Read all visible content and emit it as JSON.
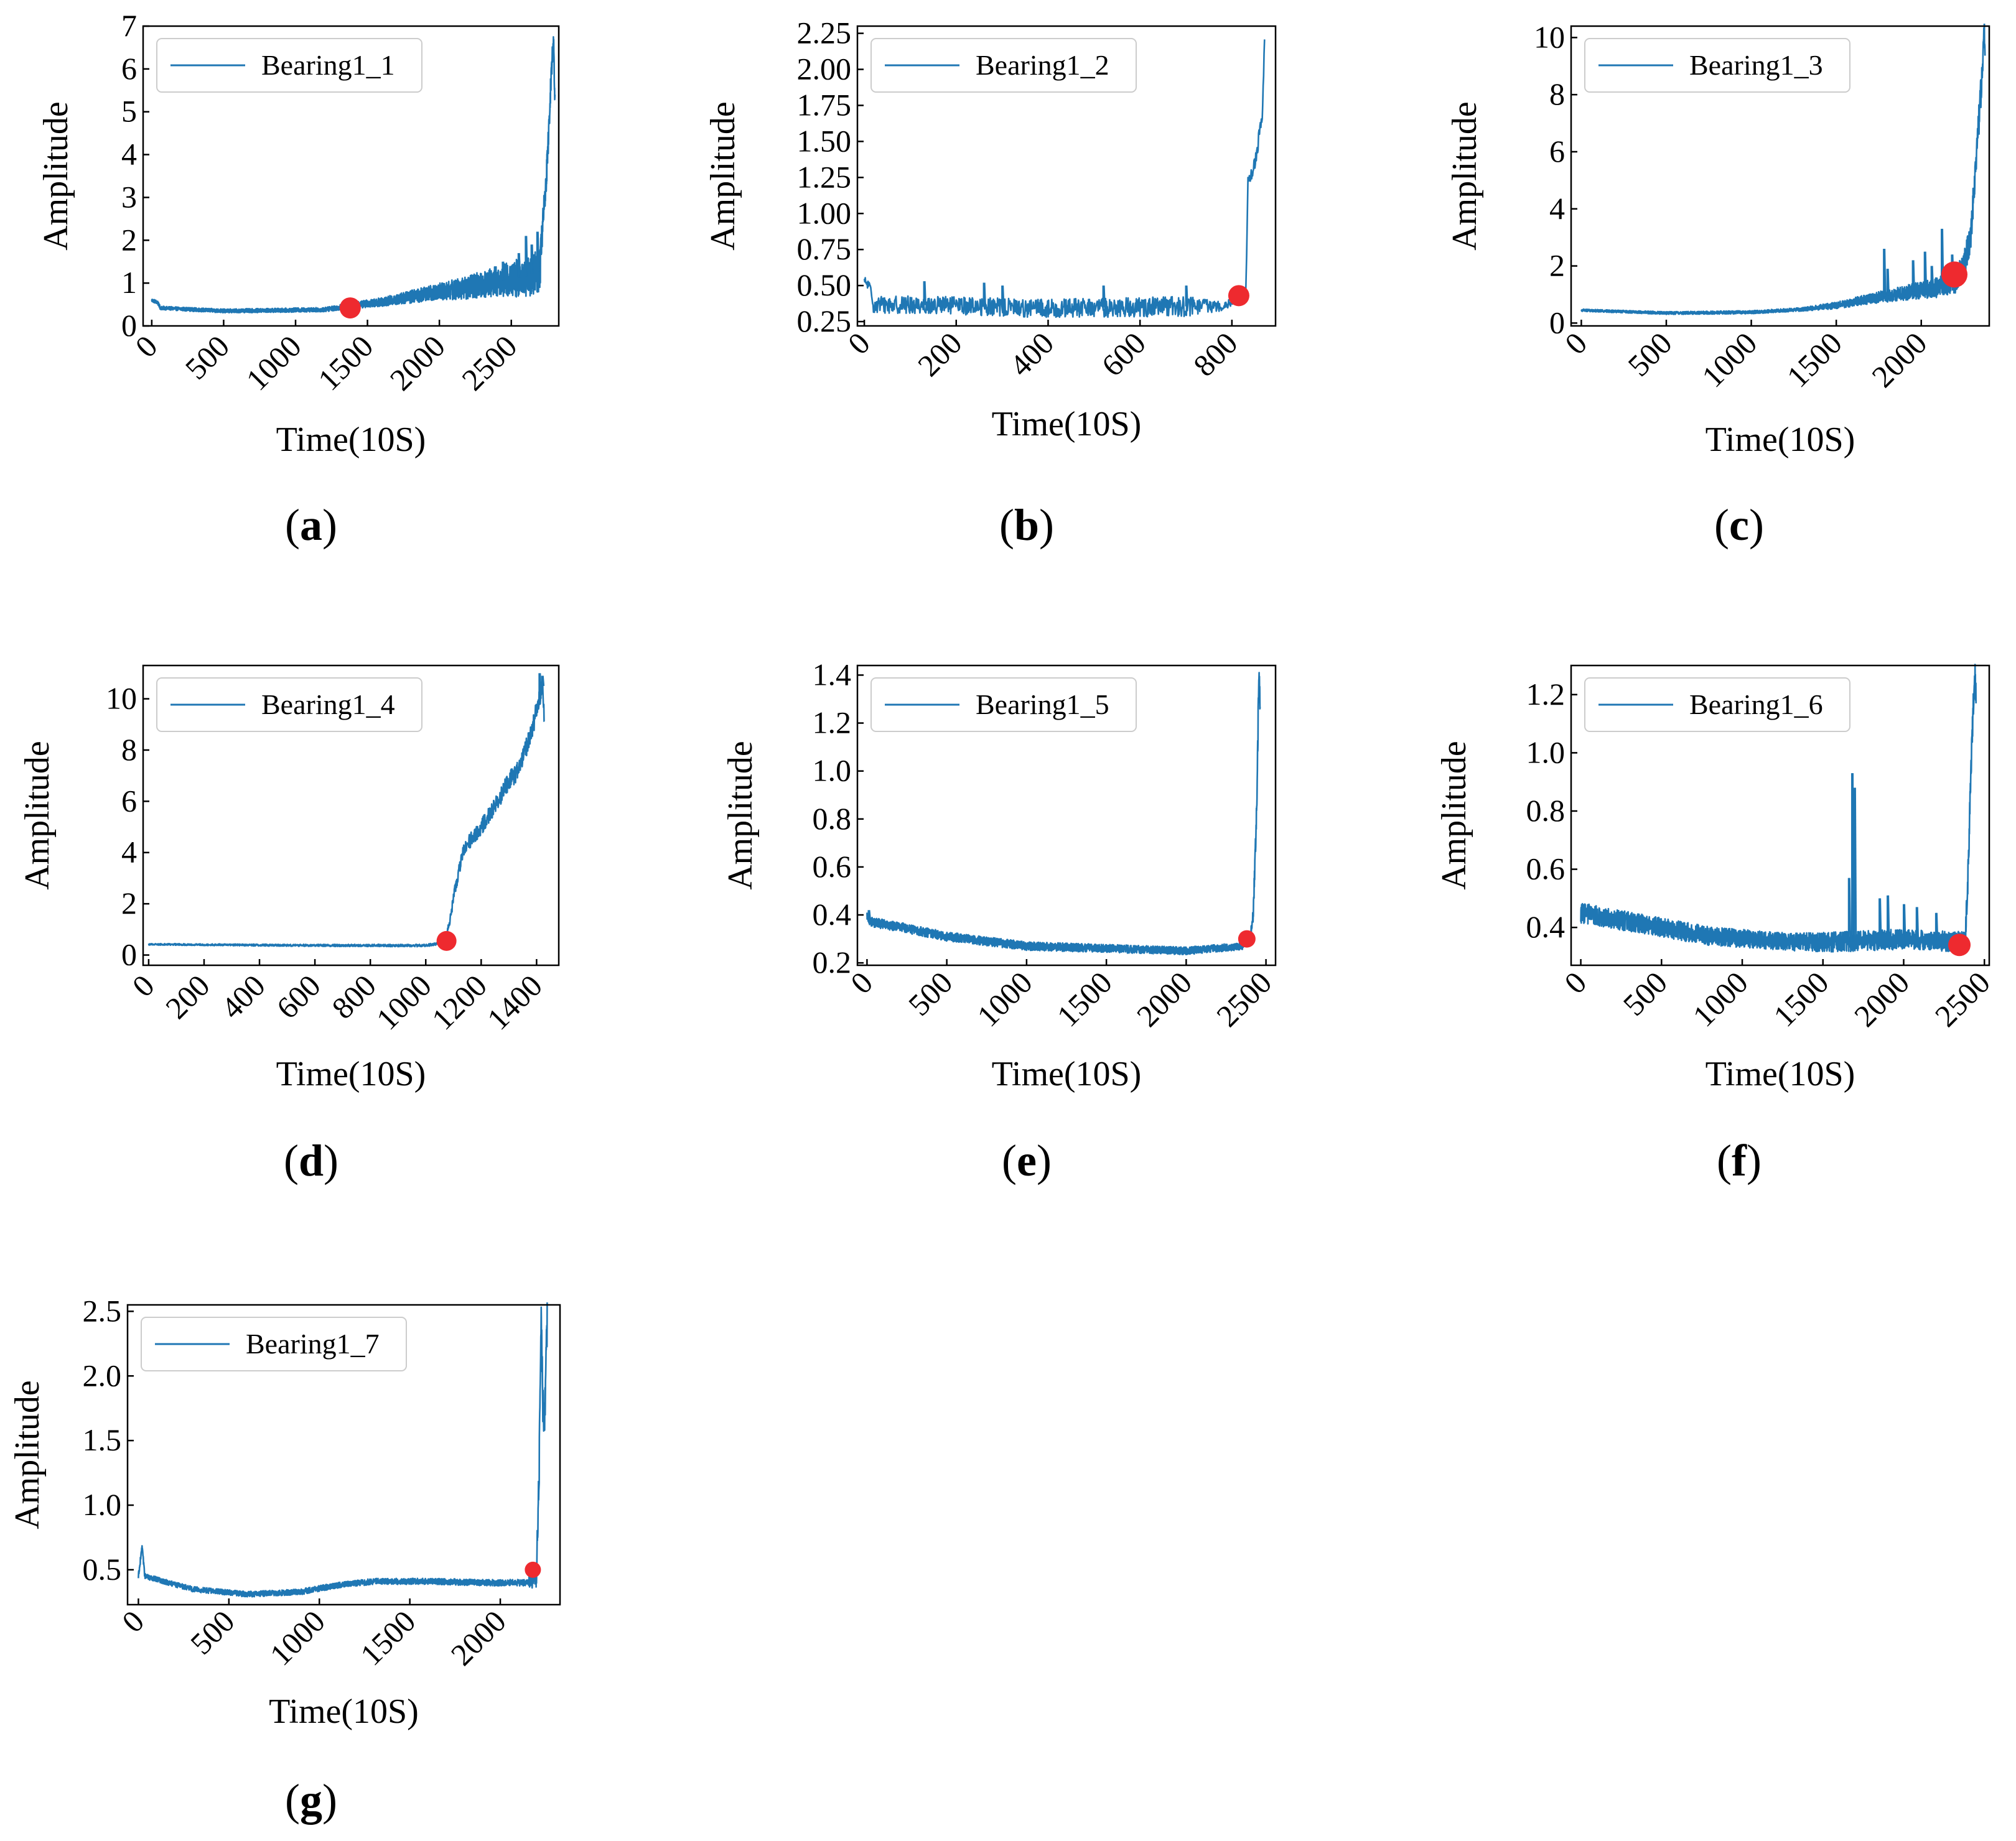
{
  "figure": {
    "line_color": "#1f77b4",
    "marker_color": "#ee2a2f"
  },
  "chart_data": [
    {
      "id": "a",
      "panel_label": "a",
      "type": "line",
      "legend": "Bearing1_1",
      "xlabel": "Time(10S)",
      "ylabel": "Amplitude",
      "xlim": [
        -60,
        2830
      ],
      "ylim": [
        0,
        7
      ],
      "xticks": [
        0,
        500,
        1000,
        1500,
        2000,
        2500
      ],
      "yticks": [
        0,
        1,
        2,
        3,
        4,
        5,
        6,
        7
      ],
      "ytick_labels": [
        "0",
        "1",
        "2",
        "3",
        "4",
        "5",
        "6",
        "7"
      ],
      "n_points": 2803,
      "shape": [
        [
          0,
          0.6
        ],
        [
          40,
          0.55
        ],
        [
          60,
          0.42
        ],
        [
          300,
          0.38
        ],
        [
          500,
          0.35
        ],
        [
          800,
          0.36
        ],
        [
          1000,
          0.37
        ],
        [
          1200,
          0.38
        ],
        [
          1400,
          0.48
        ],
        [
          1600,
          0.56
        ],
        [
          1800,
          0.68
        ],
        [
          2000,
          0.8
        ],
        [
          2200,
          0.9
        ],
        [
          2400,
          1.05
        ],
        [
          2600,
          1.15
        ],
        [
          2700,
          1.3
        ],
        [
          2720,
          2.5
        ],
        [
          2740,
          3.2
        ],
        [
          2760,
          4.5
        ],
        [
          2780,
          6.0
        ],
        [
          2795,
          6.7
        ],
        [
          2803,
          5.2
        ]
      ],
      "noise": [
        [
          0,
          0.04
        ],
        [
          1200,
          0.05
        ],
        [
          1600,
          0.1
        ],
        [
          2000,
          0.2
        ],
        [
          2400,
          0.35
        ],
        [
          2700,
          0.55
        ],
        [
          2720,
          0.3
        ]
      ],
      "spikes": [
        [
          2440,
          1.5
        ],
        [
          2550,
          1.7
        ],
        [
          2600,
          2.1
        ],
        [
          2640,
          1.9
        ],
        [
          2680,
          2.2
        ]
      ],
      "fpt": {
        "x": 1380,
        "y": 0.42
      }
    },
    {
      "id": "b",
      "panel_label": "b",
      "type": "line",
      "legend": "Bearing1_2",
      "xlabel": "Time(10S)",
      "ylabel": "Amplitude",
      "xlim": [
        -15,
        895
      ],
      "ylim": [
        0.22,
        2.3
      ],
      "xticks": [
        0,
        200,
        400,
        600,
        800
      ],
      "yticks": [
        0.25,
        0.5,
        0.75,
        1.0,
        1.25,
        1.5,
        1.75,
        2.0,
        2.25
      ],
      "ytick_labels": [
        "0.25",
        "0.50",
        "0.75",
        "1.00",
        "1.25",
        "1.50",
        "1.75",
        "2.00",
        "2.25"
      ],
      "n_points": 871,
      "shape": [
        [
          0,
          0.53
        ],
        [
          10,
          0.5
        ],
        [
          20,
          0.37
        ],
        [
          200,
          0.36
        ],
        [
          400,
          0.34
        ],
        [
          600,
          0.35
        ],
        [
          780,
          0.36
        ],
        [
          820,
          0.42
        ],
        [
          830,
          0.45
        ],
        [
          835,
          1.2
        ],
        [
          840,
          1.23
        ],
        [
          850,
          1.35
        ],
        [
          860,
          1.55
        ],
        [
          866,
          1.65
        ],
        [
          871,
          2.2
        ]
      ],
      "noise": [
        [
          0,
          0.03
        ],
        [
          20,
          0.06
        ],
        [
          700,
          0.07
        ],
        [
          790,
          0.03
        ],
        [
          835,
          0.05
        ]
      ],
      "spikes": [
        [
          130,
          0.53
        ],
        [
          260,
          0.52
        ],
        [
          300,
          0.5
        ],
        [
          520,
          0.5
        ],
        [
          700,
          0.5
        ]
      ],
      "fpt": {
        "x": 815,
        "y": 0.43
      }
    },
    {
      "id": "c",
      "panel_label": "c",
      "type": "line",
      "legend": "Bearing1_3",
      "xlabel": "Time(10S)",
      "ylabel": "Amplitude",
      "xlim": [
        -60,
        2400
      ],
      "ylim": [
        -0.1,
        10.4
      ],
      "xticks": [
        0,
        500,
        1000,
        1500,
        2000
      ],
      "yticks": [
        0,
        2,
        4,
        6,
        8,
        10
      ],
      "ytick_labels": [
        "0",
        "2",
        "4",
        "6",
        "8",
        "10"
      ],
      "n_points": 2375,
      "shape": [
        [
          0,
          0.45
        ],
        [
          500,
          0.35
        ],
        [
          1000,
          0.38
        ],
        [
          1300,
          0.48
        ],
        [
          1500,
          0.62
        ],
        [
          1700,
          0.85
        ],
        [
          1900,
          1.05
        ],
        [
          2100,
          1.25
        ],
        [
          2200,
          1.5
        ],
        [
          2250,
          2.0
        ],
        [
          2290,
          3.0
        ],
        [
          2320,
          5.5
        ],
        [
          2350,
          8.0
        ],
        [
          2370,
          10.3
        ],
        [
          2375,
          9.6
        ]
      ],
      "noise": [
        [
          0,
          0.04
        ],
        [
          1300,
          0.06
        ],
        [
          1700,
          0.18
        ],
        [
          2100,
          0.35
        ],
        [
          2250,
          0.5
        ],
        [
          2375,
          0.6
        ]
      ],
      "spikes": [
        [
          1780,
          2.6
        ],
        [
          1800,
          1.9
        ],
        [
          1950,
          2.2
        ],
        [
          2020,
          2.5
        ],
        [
          2060,
          2.0
        ],
        [
          2120,
          3.3
        ],
        [
          2180,
          2.4
        ]
      ],
      "fpt": {
        "x": 2195,
        "y": 1.7
      }
    },
    {
      "id": "d",
      "panel_label": "d",
      "type": "line",
      "legend": "Bearing1_4",
      "xlabel": "Time(10S)",
      "ylabel": "Amplitude",
      "xlim": [
        -20,
        1480
      ],
      "ylim": [
        -0.4,
        11.3
      ],
      "xticks": [
        0,
        200,
        400,
        600,
        800,
        1000,
        1200,
        1400
      ],
      "yticks": [
        0,
        2,
        4,
        6,
        8,
        10
      ],
      "ytick_labels": [
        "0",
        "2",
        "4",
        "6",
        "8",
        "10"
      ],
      "n_points": 1428,
      "shape": [
        [
          0,
          0.42
        ],
        [
          500,
          0.38
        ],
        [
          1000,
          0.37
        ],
        [
          1070,
          0.5
        ],
        [
          1090,
          1.5
        ],
        [
          1110,
          2.8
        ],
        [
          1140,
          4.2
        ],
        [
          1170,
          4.6
        ],
        [
          1200,
          5.0
        ],
        [
          1230,
          5.5
        ],
        [
          1260,
          6.0
        ],
        [
          1300,
          6.8
        ],
        [
          1340,
          7.3
        ],
        [
          1370,
          8.3
        ],
        [
          1400,
          9.5
        ],
        [
          1420,
          10.5
        ],
        [
          1428,
          9.4
        ]
      ],
      "noise": [
        [
          0,
          0.03
        ],
        [
          1070,
          0.05
        ],
        [
          1100,
          0.25
        ],
        [
          1428,
          0.45
        ]
      ],
      "spikes": [
        [
          1410,
          11.0
        ],
        [
          1420,
          10.9
        ]
      ],
      "fpt": {
        "x": 1075,
        "y": 0.55
      }
    },
    {
      "id": "e",
      "panel_label": "e",
      "type": "line",
      "legend": "Bearing1_5",
      "xlabel": "Time(10S)",
      "ylabel": "Amplitude",
      "xlim": [
        -60,
        2560
      ],
      "ylim": [
        0.19,
        1.44
      ],
      "xticks": [
        0,
        500,
        1000,
        1500,
        2000,
        2500
      ],
      "yticks": [
        0.2,
        0.4,
        0.6,
        0.8,
        1.0,
        1.2,
        1.4
      ],
      "ytick_labels": [
        "0.2",
        "0.4",
        "0.6",
        "0.8",
        "1.0",
        "1.2",
        "1.4"
      ],
      "n_points": 2463,
      "shape": [
        [
          0,
          0.39
        ],
        [
          30,
          0.37
        ],
        [
          200,
          0.35
        ],
        [
          500,
          0.31
        ],
        [
          1000,
          0.27
        ],
        [
          1500,
          0.26
        ],
        [
          2000,
          0.25
        ],
        [
          2350,
          0.27
        ],
        [
          2400,
          0.3
        ],
        [
          2420,
          0.4
        ],
        [
          2435,
          0.7
        ],
        [
          2445,
          0.95
        ],
        [
          2455,
          1.4
        ],
        [
          2463,
          1.3
        ]
      ],
      "noise": [
        [
          0,
          0.02
        ],
        [
          2400,
          0.015
        ],
        [
          2463,
          0.06
        ]
      ],
      "spikes": [
        [
          10,
          0.42
        ]
      ],
      "fpt": {
        "x": 2380,
        "y": 0.3
      }
    },
    {
      "id": "f",
      "panel_label": "f",
      "type": "line",
      "legend": "Bearing1_6",
      "xlabel": "Time(10S)",
      "ylabel": "Amplitude",
      "xlim": [
        -60,
        2530
      ],
      "ylim": [
        0.27,
        1.3
      ],
      "xticks": [
        0,
        500,
        1000,
        1500,
        2000,
        2500
      ],
      "yticks": [
        0.4,
        0.6,
        0.8,
        1.0,
        1.2
      ],
      "ytick_labels": [
        "0.4",
        "0.6",
        "0.8",
        "1.0",
        "1.2"
      ],
      "n_points": 2448,
      "shape": [
        [
          0,
          0.45
        ],
        [
          300,
          0.42
        ],
        [
          800,
          0.37
        ],
        [
          1300,
          0.35
        ],
        [
          1600,
          0.35
        ],
        [
          2000,
          0.36
        ],
        [
          2380,
          0.35
        ],
        [
          2400,
          0.6
        ],
        [
          2420,
          1.0
        ],
        [
          2440,
          1.29
        ],
        [
          2448,
          1.2
        ]
      ],
      "noise": [
        [
          0,
          0.035
        ],
        [
          1300,
          0.03
        ],
        [
          1600,
          0.035
        ],
        [
          2380,
          0.035
        ],
        [
          2400,
          0.05
        ]
      ],
      "spikes": [
        [
          1660,
          0.57
        ],
        [
          1680,
          0.93
        ],
        [
          1695,
          0.88
        ],
        [
          1850,
          0.5
        ],
        [
          1900,
          0.51
        ],
        [
          2000,
          0.48
        ],
        [
          2080,
          0.47
        ],
        [
          2200,
          0.45
        ]
      ],
      "fpt": {
        "x": 2345,
        "y": 0.34
      }
    },
    {
      "id": "g",
      "panel_label": "g",
      "type": "line",
      "legend": "Bearing1_7",
      "xlabel": "Time(10S)",
      "ylabel": "Amplitude",
      "xlim": [
        -60,
        2330
      ],
      "ylim": [
        0.23,
        2.55
      ],
      "xticks": [
        0,
        500,
        1000,
        1500,
        2000
      ],
      "yticks": [
        0.5,
        1.0,
        1.5,
        2.0,
        2.5
      ],
      "ytick_labels": [
        "0.5",
        "1.0",
        "1.5",
        "2.0",
        "2.5"
      ],
      "n_points": 2259,
      "shape": [
        [
          0,
          0.45
        ],
        [
          20,
          0.68
        ],
        [
          35,
          0.45
        ],
        [
          300,
          0.35
        ],
        [
          600,
          0.31
        ],
        [
          900,
          0.33
        ],
        [
          1100,
          0.38
        ],
        [
          1300,
          0.41
        ],
        [
          1600,
          0.41
        ],
        [
          1900,
          0.4
        ],
        [
          2150,
          0.4
        ],
        [
          2200,
          0.45
        ],
        [
          2215,
          1.3
        ],
        [
          2225,
          2.45
        ],
        [
          2240,
          1.5
        ],
        [
          2250,
          1.9
        ],
        [
          2259,
          2.4
        ]
      ],
      "noise": [
        [
          0,
          0.02
        ],
        [
          2150,
          0.025
        ],
        [
          2215,
          0.15
        ],
        [
          2259,
          0.2
        ]
      ],
      "spikes": [],
      "fpt": {
        "x": 2180,
        "y": 0.5
      }
    }
  ]
}
